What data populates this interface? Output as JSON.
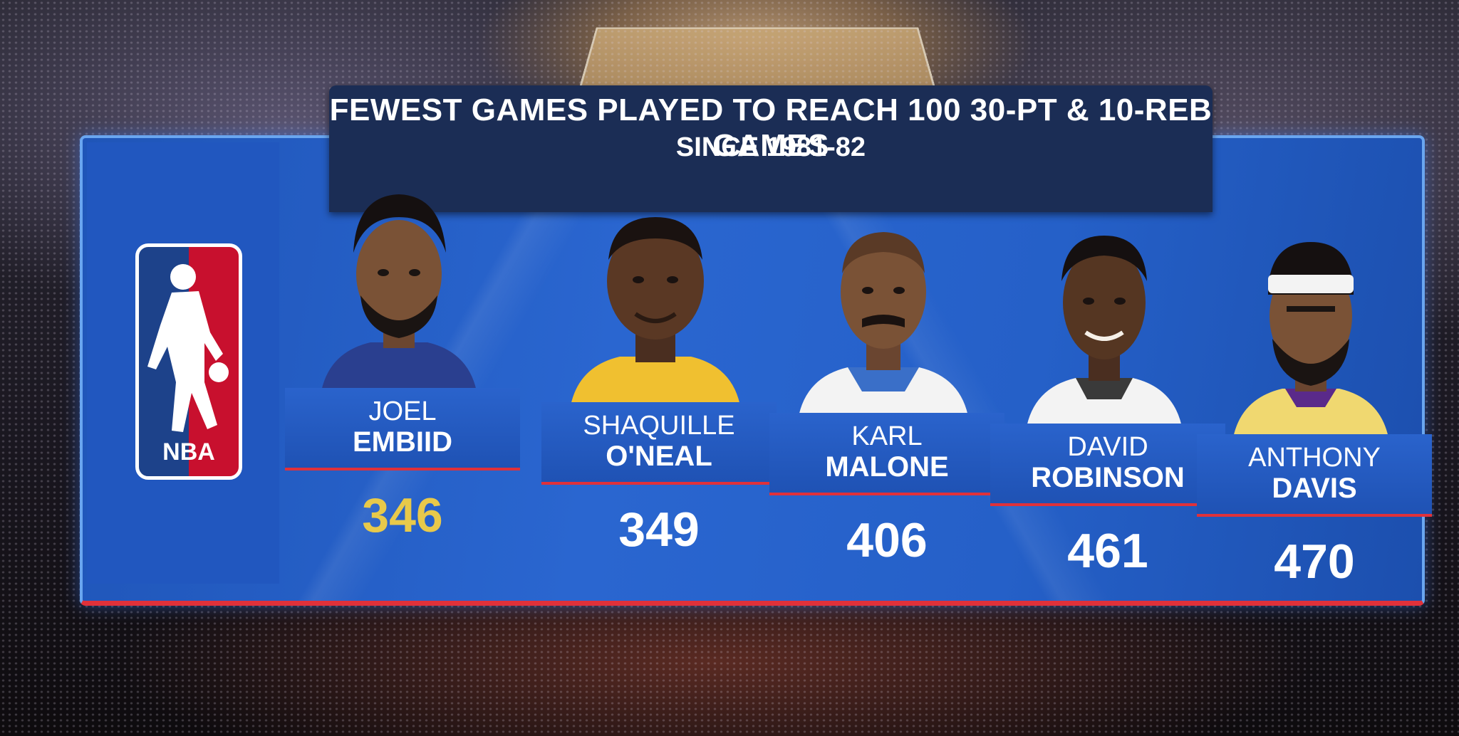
{
  "title": {
    "main": "FEWEST GAMES PLAYED TO REACH 100  30-PT & 10-REB GAMES",
    "sub": "SINCE 1981-82"
  },
  "logo": {
    "text": "NBA"
  },
  "colors": {
    "board_blue": "#2560c8",
    "accent_red": "#e0313a",
    "lead_gold": "#e8c94a",
    "title_navy": "#1b2d55"
  },
  "players": [
    {
      "first": "JOEL",
      "last": "EMBIID",
      "games": "346",
      "jersey_color": "#2a3f8f"
    },
    {
      "first": "SHAQUILLE",
      "last": "O'NEAL",
      "games": "349",
      "jersey_color": "#f0c030"
    },
    {
      "first": "KARL",
      "last": "MALONE",
      "games": "406",
      "jersey_color": "#f3f3f3"
    },
    {
      "first": "DAVID",
      "last": "ROBINSON",
      "games": "461",
      "jersey_color": "#f3f3f3"
    },
    {
      "first": "ANTHONY",
      "last": "DAVIS",
      "games": "470",
      "jersey_color": "#f0d870"
    }
  ],
  "chart_data": {
    "type": "table",
    "categories": [
      "JOEL EMBIID",
      "SHAQUILLE O'NEAL",
      "KARL MALONE",
      "DAVID ROBINSON",
      "ANTHONY DAVIS"
    ],
    "values": [
      346,
      349,
      406,
      461,
      470
    ],
    "title": "FEWEST GAMES PLAYED TO REACH 100  30-PT & 10-REB GAMES",
    "subtitle": "SINCE 1981-82"
  }
}
